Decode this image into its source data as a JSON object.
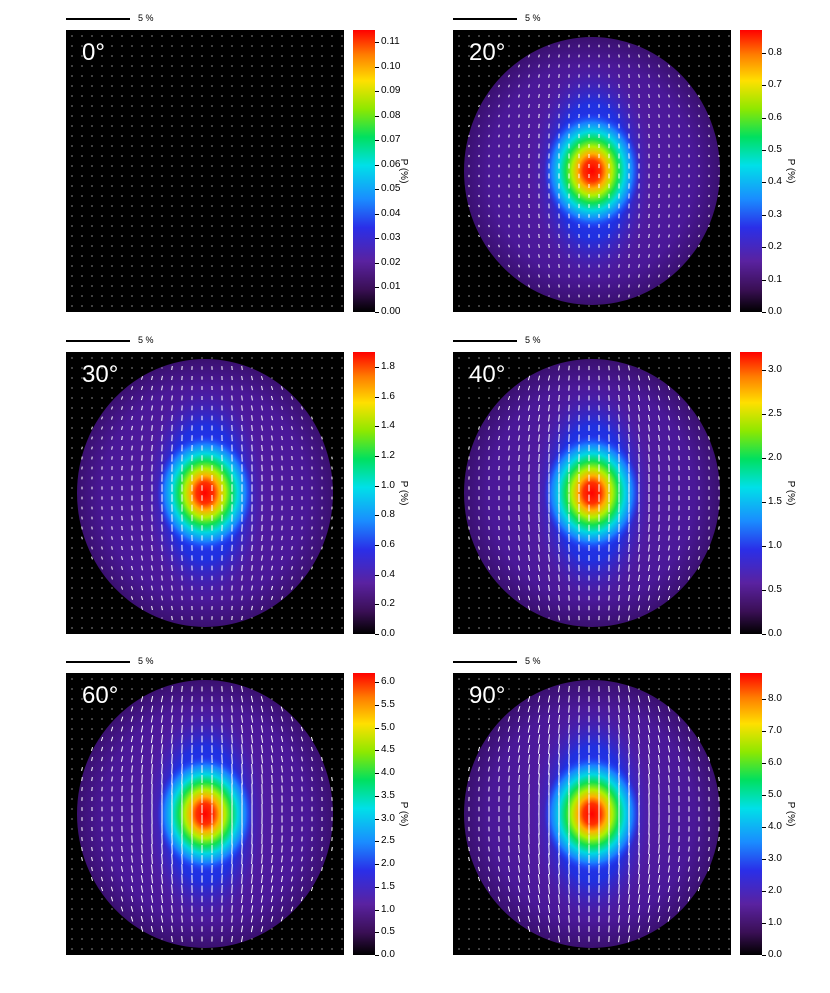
{
  "scale_bar_label": "5 %",
  "colorbar_label": "P (%)",
  "chart_data": [
    {
      "type": "heatmap",
      "title": "0°",
      "pattern": "ring",
      "colorbar_ticks": [
        "0.00",
        "0.01",
        "0.02",
        "0.03",
        "0.04",
        "0.05",
        "0.06",
        "0.07",
        "0.08",
        "0.09",
        "0.10",
        "0.11"
      ],
      "colorbar_range": [
        0,
        0.115
      ],
      "vector_strength": 0.0
    },
    {
      "type": "heatmap",
      "title": "20°",
      "pattern": "central-peak",
      "colorbar_ticks": [
        "0.0",
        "0.1",
        "0.2",
        "0.3",
        "0.4",
        "0.5",
        "0.6",
        "0.7",
        "0.8"
      ],
      "colorbar_range": [
        0,
        0.87
      ],
      "vector_strength": 0.35
    },
    {
      "type": "heatmap",
      "title": "30°",
      "pattern": "central-peak",
      "colorbar_ticks": [
        "0.0",
        "0.2",
        "0.4",
        "0.6",
        "0.8",
        "1.0",
        "1.2",
        "1.4",
        "1.6",
        "1.8"
      ],
      "colorbar_range": [
        0,
        1.9
      ],
      "vector_strength": 0.55
    },
    {
      "type": "heatmap",
      "title": "40°",
      "pattern": "central-peak",
      "colorbar_ticks": [
        "0.0",
        "0.5",
        "1.0",
        "1.5",
        "2.0",
        "2.5",
        "3.0"
      ],
      "colorbar_range": [
        0,
        3.2
      ],
      "vector_strength": 0.7
    },
    {
      "type": "heatmap",
      "title": "60°",
      "pattern": "central-peak",
      "colorbar_ticks": [
        "0.0",
        "0.5",
        "1.0",
        "1.5",
        "2.0",
        "2.5",
        "3.0",
        "3.5",
        "4.0",
        "4.5",
        "5.0",
        "5.5",
        "6.0"
      ],
      "colorbar_range": [
        0,
        6.2
      ],
      "vector_strength": 0.9
    },
    {
      "type": "heatmap",
      "title": "90°",
      "pattern": "central-peak",
      "colorbar_ticks": [
        "0.0",
        "1.0",
        "2.0",
        "3.0",
        "4.0",
        "5.0",
        "6.0",
        "7.0",
        "8.0"
      ],
      "colorbar_range": [
        0,
        8.8
      ],
      "vector_strength": 1.0
    }
  ]
}
